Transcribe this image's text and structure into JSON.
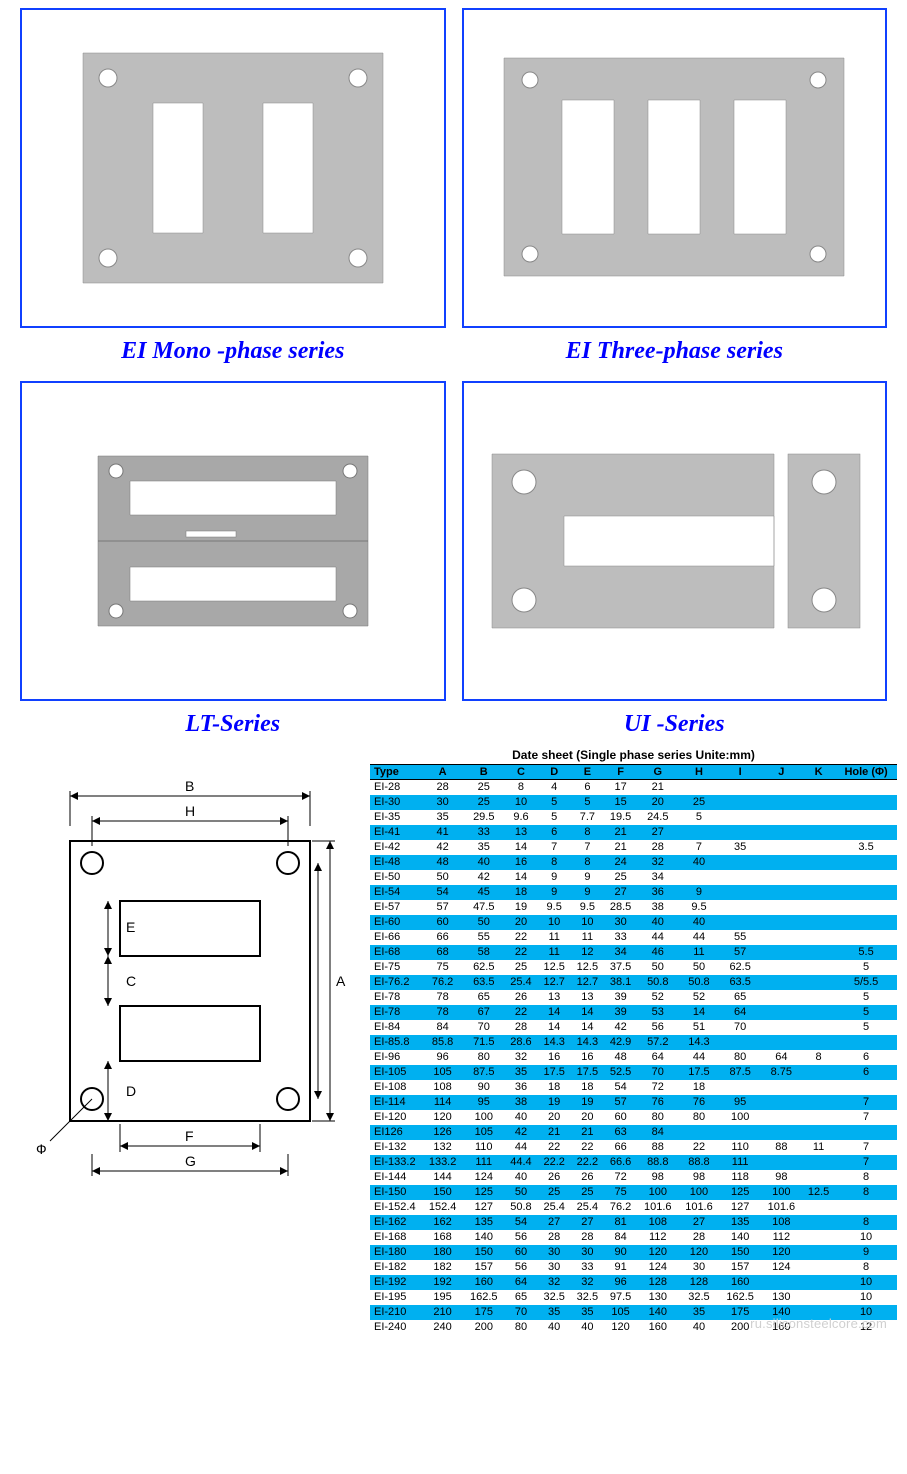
{
  "gallery": [
    {
      "caption": "EI Mono -phase series"
    },
    {
      "caption": "EI Three-phase series"
    },
    {
      "caption": "LT-Series"
    },
    {
      "caption": "UI -Series"
    }
  ],
  "caption_color": "#0000ff",
  "panel_border_color": "#1040ff",
  "metal_fill": "#bdbdbd",
  "metal_fill_dark": "#a8a8a8",
  "datasheet": {
    "title": "Date sheet   (Single phase series Unite:mm)",
    "title_fontsize": 12,
    "header_bg": "#00b0f0",
    "row_alt_bg": "#00b0f0",
    "row_bg": "#ffffff",
    "font_size": 11,
    "columns": [
      "Type",
      "A",
      "B",
      "C",
      "D",
      "E",
      "F",
      "G",
      "H",
      "I",
      "J",
      "K",
      "Hole (Φ)"
    ],
    "rows": [
      [
        "EI-28",
        "28",
        "25",
        "8",
        "4",
        "6",
        "17",
        "21",
        "",
        "",
        "",
        "",
        ""
      ],
      [
        "EI-30",
        "30",
        "25",
        "10",
        "5",
        "5",
        "15",
        "20",
        "25",
        "",
        "",
        "",
        ""
      ],
      [
        "EI-35",
        "35",
        "29.5",
        "9.6",
        "5",
        "7.7",
        "19.5",
        "24.5",
        "5",
        "",
        "",
        "",
        ""
      ],
      [
        "EI-41",
        "41",
        "33",
        "13",
        "6",
        "8",
        "21",
        "27",
        "",
        "",
        "",
        "",
        ""
      ],
      [
        "EI-42",
        "42",
        "35",
        "14",
        "7",
        "7",
        "21",
        "28",
        "7",
        "35",
        "",
        "",
        "3.5"
      ],
      [
        "EI-48",
        "48",
        "40",
        "16",
        "8",
        "8",
        "24",
        "32",
        "40",
        "",
        "",
        "",
        ""
      ],
      [
        "EI-50",
        "50",
        "42",
        "14",
        "9",
        "9",
        "25",
        "34",
        "",
        "",
        "",
        "",
        ""
      ],
      [
        "EI-54",
        "54",
        "45",
        "18",
        "9",
        "9",
        "27",
        "36",
        "9",
        "",
        "",
        "",
        ""
      ],
      [
        "EI-57",
        "57",
        "47.5",
        "19",
        "9.5",
        "9.5",
        "28.5",
        "38",
        "9.5",
        "",
        "",
        "",
        ""
      ],
      [
        "EI-60",
        "60",
        "50",
        "20",
        "10",
        "10",
        "30",
        "40",
        "40",
        "",
        "",
        "",
        ""
      ],
      [
        "EI-66",
        "66",
        "55",
        "22",
        "11",
        "11",
        "33",
        "44",
        "44",
        "55",
        "",
        "",
        ""
      ],
      [
        "EI-68",
        "68",
        "58",
        "22",
        "11",
        "12",
        "34",
        "46",
        "11",
        "57",
        "",
        "",
        "5.5"
      ],
      [
        "EI-75",
        "75",
        "62.5",
        "25",
        "12.5",
        "12.5",
        "37.5",
        "50",
        "50",
        "62.5",
        "",
        "",
        "5"
      ],
      [
        "EI-76.2",
        "76.2",
        "63.5",
        "25.4",
        "12.7",
        "12.7",
        "38.1",
        "50.8",
        "50.8",
        "63.5",
        "",
        "",
        "5/5.5"
      ],
      [
        "EI-78",
        "78",
        "65",
        "26",
        "13",
        "13",
        "39",
        "52",
        "52",
        "65",
        "",
        "",
        "5"
      ],
      [
        "EI-78",
        "78",
        "67",
        "22",
        "14",
        "14",
        "39",
        "53",
        "14",
        "64",
        "",
        "",
        "5"
      ],
      [
        "EI-84",
        "84",
        "70",
        "28",
        "14",
        "14",
        "42",
        "56",
        "51",
        "70",
        "",
        "",
        "5"
      ],
      [
        "EI-85.8",
        "85.8",
        "71.5",
        "28.6",
        "14.3",
        "14.3",
        "42.9",
        "57.2",
        "14.3",
        "",
        "",
        "",
        ""
      ],
      [
        "EI-96",
        "96",
        "80",
        "32",
        "16",
        "16",
        "48",
        "64",
        "44",
        "80",
        "64",
        "8",
        "6"
      ],
      [
        "EI-105",
        "105",
        "87.5",
        "35",
        "17.5",
        "17.5",
        "52.5",
        "70",
        "17.5",
        "87.5",
        "8.75",
        "",
        "6"
      ],
      [
        "EI-108",
        "108",
        "90",
        "36",
        "18",
        "18",
        "54",
        "72",
        "18",
        "",
        "",
        "",
        ""
      ],
      [
        "EI-114",
        "114",
        "95",
        "38",
        "19",
        "19",
        "57",
        "76",
        "76",
        "95",
        "",
        "",
        "7"
      ],
      [
        "EI-120",
        "120",
        "100",
        "40",
        "20",
        "20",
        "60",
        "80",
        "80",
        "100",
        "",
        "",
        "7"
      ],
      [
        "EI126",
        "126",
        "105",
        "42",
        "21",
        "21",
        "63",
        "84",
        "",
        "",
        "",
        "",
        ""
      ],
      [
        "EI-132",
        "132",
        "110",
        "44",
        "22",
        "22",
        "66",
        "88",
        "22",
        "110",
        "88",
        "11",
        "7"
      ],
      [
        "EI-133.2",
        "133.2",
        "111",
        "44.4",
        "22.2",
        "22.2",
        "66.6",
        "88.8",
        "88.8",
        "111",
        "",
        "",
        "7"
      ],
      [
        "EI-144",
        "144",
        "124",
        "40",
        "26",
        "26",
        "72",
        "98",
        "98",
        "118",
        "98",
        "",
        "8"
      ],
      [
        "EI-150",
        "150",
        "125",
        "50",
        "25",
        "25",
        "75",
        "100",
        "100",
        "125",
        "100",
        "12.5",
        "8"
      ],
      [
        "EI-152.4",
        "152.4",
        "127",
        "50.8",
        "25.4",
        "25.4",
        "76.2",
        "101.6",
        "101.6",
        "127",
        "101.6",
        "",
        ""
      ],
      [
        "EI-162",
        "162",
        "135",
        "54",
        "27",
        "27",
        "81",
        "108",
        "27",
        "135",
        "108",
        "",
        "8"
      ],
      [
        "EI-168",
        "168",
        "140",
        "56",
        "28",
        "28",
        "84",
        "112",
        "28",
        "140",
        "112",
        "",
        "10"
      ],
      [
        "EI-180",
        "180",
        "150",
        "60",
        "30",
        "30",
        "90",
        "120",
        "120",
        "150",
        "120",
        "",
        "9"
      ],
      [
        "EI-182",
        "182",
        "157",
        "56",
        "30",
        "33",
        "91",
        "124",
        "30",
        "157",
        "124",
        "",
        "8"
      ],
      [
        "EI-192",
        "192",
        "160",
        "64",
        "32",
        "32",
        "96",
        "128",
        "128",
        "160",
        "",
        "",
        "10"
      ],
      [
        "EI-195",
        "195",
        "162.5",
        "65",
        "32.5",
        "32.5",
        "97.5",
        "130",
        "32.5",
        "162.5",
        "130",
        "",
        "10"
      ],
      [
        "EI-210",
        "210",
        "175",
        "70",
        "35",
        "35",
        "105",
        "140",
        "35",
        "175",
        "140",
        "",
        "10"
      ],
      [
        "EI-240",
        "240",
        "200",
        "80",
        "40",
        "40",
        "120",
        "160",
        "40",
        "200",
        "160",
        "",
        "12"
      ]
    ]
  },
  "diagram": {
    "labels": {
      "A": "A",
      "B": "B",
      "C": "C",
      "D": "D",
      "E": "E",
      "F": "F",
      "G": "G",
      "H": "H",
      "phi": "Ф"
    },
    "stroke_color": "#000000"
  },
  "watermark": "ru.siliconsteelcore.com"
}
